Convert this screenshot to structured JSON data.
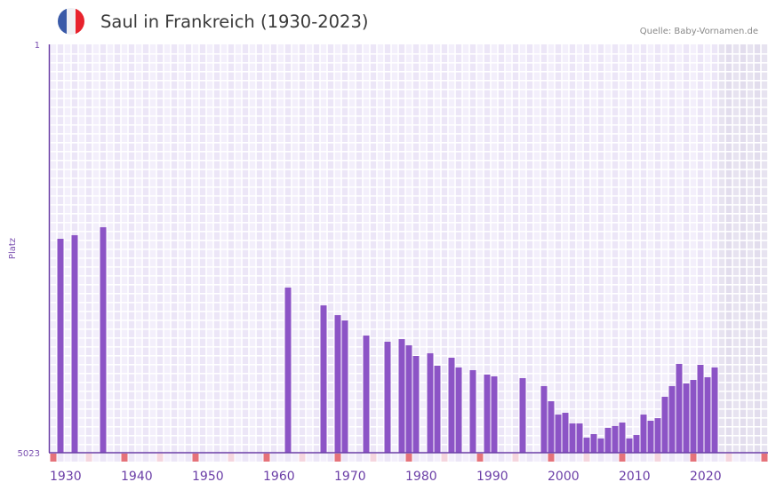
{
  "header": {
    "title": "Saul in Frankreich (1930-2023)",
    "source": "Quelle: Baby-Vornamen.de",
    "flag_icon": "france-flag-icon",
    "flag_colors": [
      "#3a5aa8",
      "#f1f1f4",
      "#e8232d"
    ]
  },
  "colors": {
    "bar": "#8c54c6",
    "axis": "#6a3da6",
    "grid_a": "#ece6f7",
    "grid_b": "#f3effb",
    "future_a": "#e2dded",
    "future_b": "#e7e3f0",
    "decade_marker": "#e5727a",
    "half_decade_marker": "#f5d5de"
  },
  "chart_data": {
    "type": "bar",
    "title": "Saul in Frankreich (1930-2023)",
    "xlabel": "",
    "ylabel": "Platz",
    "y_axis_inverted": true,
    "ylim": [
      1,
      5023
    ],
    "y_ticks": [
      "1",
      "5023"
    ],
    "x_range": [
      1930,
      2030
    ],
    "x_ticks": [
      "1930",
      "1940",
      "1950",
      "1960",
      "1970",
      "1980",
      "1990",
      "2000",
      "2010",
      "2020"
    ],
    "grid": true,
    "future_shaded_from": 2024,
    "source": "Quelle: Baby-Vornamen.de",
    "categories": [
      1931,
      1933,
      1937,
      1963,
      1968,
      1970,
      1971,
      1974,
      1977,
      1979,
      1980,
      1981,
      1983,
      1984,
      1986,
      1987,
      1989,
      1991,
      1992,
      1996,
      1999,
      2000,
      2001,
      2002,
      2003,
      2004,
      2005,
      2006,
      2007,
      2008,
      2009,
      2010,
      2011,
      2012,
      2013,
      2014,
      2015,
      2016,
      2017,
      2018,
      2019,
      2020,
      2021,
      2022,
      2023
    ],
    "values": [
      2392,
      2348,
      2250,
      2992,
      3211,
      3331,
      3396,
      3582,
      3658,
      3626,
      3702,
      3833,
      3800,
      3953,
      3855,
      3975,
      4008,
      4062,
      4084,
      4106,
      4204,
      4390,
      4554,
      4532,
      4663,
      4663,
      4838,
      4794,
      4848,
      4717,
      4695,
      4652,
      4848,
      4805,
      4554,
      4630,
      4598,
      4335,
      4204,
      3931,
      4171,
      4128,
      3942,
      4095,
      3975
    ]
  }
}
